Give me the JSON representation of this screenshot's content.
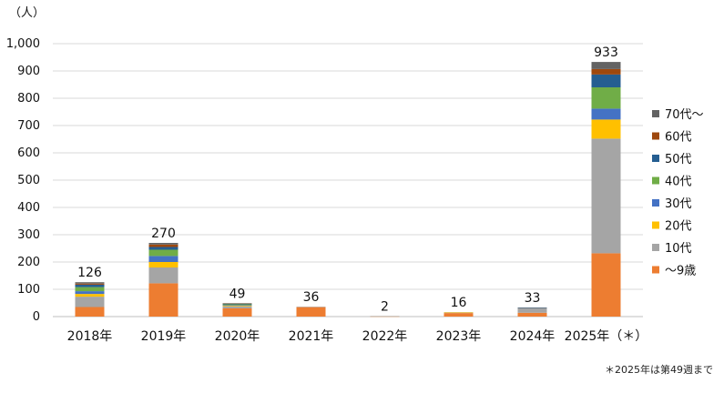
{
  "chart_data": {
    "type": "stacked-bar",
    "unit_label": "（人）",
    "ylim": [
      0,
      1000
    ],
    "y_ticks": [
      "0",
      "100",
      "200",
      "300",
      "400",
      "500",
      "600",
      "700",
      "800",
      "900",
      "1,000"
    ],
    "grid": true,
    "legend_position": "right",
    "categories": [
      "2018年",
      "2019年",
      "2020年",
      "2021年",
      "2022年",
      "2023年",
      "2024年",
      "2025年（＊）"
    ],
    "totals": [
      126,
      270,
      49,
      36,
      2,
      16,
      33,
      933
    ],
    "total_labels": [
      "126",
      "270",
      "49",
      "36",
      "2",
      "16",
      "33",
      "933"
    ],
    "series": [
      {
        "name": "～9歳",
        "color": "#ED7D31",
        "values": [
          35,
          122,
          30,
          35,
          1,
          13,
          14,
          232
        ]
      },
      {
        "name": "10代",
        "color": "#A5A5A5",
        "values": [
          38,
          58,
          8,
          1,
          1,
          2,
          17,
          420
        ]
      },
      {
        "name": "20代",
        "color": "#FFC000",
        "values": [
          10,
          20,
          2,
          0,
          0,
          1,
          0,
          70
        ]
      },
      {
        "name": "30代",
        "color": "#4472C4",
        "values": [
          10,
          22,
          2,
          0,
          0,
          0,
          0,
          40
        ]
      },
      {
        "name": "40代",
        "color": "#70AD47",
        "values": [
          15,
          23,
          3,
          0,
          0,
          0,
          0,
          78
        ]
      },
      {
        "name": "50代",
        "color": "#255E91",
        "values": [
          9,
          10,
          2,
          0,
          0,
          0,
          1,
          47
        ]
      },
      {
        "name": "60代",
        "color": "#9E480E",
        "values": [
          4,
          9,
          1,
          0,
          0,
          0,
          0,
          20
        ]
      },
      {
        "name": "70代～",
        "color": "#636363",
        "values": [
          5,
          6,
          1,
          0,
          0,
          0,
          1,
          26
        ]
      }
    ]
  },
  "footnote": "＊2025年は第49週まで"
}
